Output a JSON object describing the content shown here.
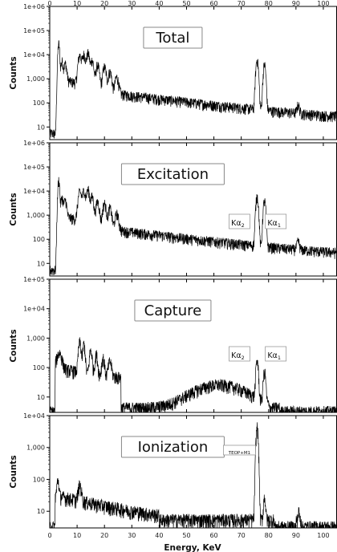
{
  "chart_data": {
    "type": "line",
    "xlabel": "Energy, KeV",
    "ylabel": "Counts",
    "xlim": [
      0,
      105
    ],
    "x_ticks": [
      0,
      10,
      20,
      30,
      40,
      50,
      60,
      70,
      80,
      90,
      100
    ],
    "x_tick_labels": [
      "0",
      "10",
      "20",
      "30",
      "40",
      "50",
      "60",
      "70",
      "80",
      "90",
      "100"
    ],
    "panels": [
      {
        "title": "Total",
        "y_scale": "log",
        "ylim": [
          3,
          1000000
        ],
        "y_ticks": [
          10,
          100,
          1000,
          10000,
          100000,
          1000000
        ],
        "y_tick_labels": [
          "10",
          "100",
          "1,000",
          "1e+04",
          "1e+05",
          "1e+06"
        ],
        "color": "#000000",
        "peaks_keV": [
          3.3,
          4.5,
          5.7,
          11.0,
          12.5,
          14.0,
          15.5,
          17.5,
          20.0,
          22.0,
          24.5,
          75.8,
          78.5,
          90.8
        ],
        "annotations": []
      },
      {
        "title": "Excitation",
        "y_scale": "log",
        "ylim": [
          3,
          1000000
        ],
        "y_ticks": [
          10,
          100,
          1000,
          10000,
          100000,
          1000000
        ],
        "y_tick_labels": [
          "10",
          "100",
          "1,000",
          "1e+04",
          "1e+05",
          "1e+06"
        ],
        "color": "#000000",
        "peaks_keV": [
          3.3,
          4.5,
          5.7,
          11.0,
          12.5,
          14.0,
          15.5,
          17.5,
          20.0,
          22.0,
          24.5,
          75.8,
          78.5,
          90.8
        ],
        "annotations": [
          {
            "main": "Kα",
            "sub": "2",
            "x": 75.8
          },
          {
            "main": "Kα",
            "sub": "1",
            "x": 78.5
          }
        ]
      },
      {
        "title": "Capture",
        "y_scale": "log",
        "ylim": [
          3,
          100000
        ],
        "y_ticks": [
          10,
          100,
          1000,
          10000,
          100000
        ],
        "y_tick_labels": [
          "10",
          "100",
          "1,000",
          "1e+04",
          "1e+05"
        ],
        "color": "#000000",
        "peaks_keV": [
          3.5,
          11.0,
          12.5,
          15.0,
          17.0,
          19.5,
          22.0,
          63.0,
          75.8,
          78.5
        ],
        "annotations": [
          {
            "main": "Kα",
            "sub": "2",
            "x": 75.8
          },
          {
            "main": "Kα",
            "sub": "1",
            "x": 78.5
          }
        ]
      },
      {
        "title": "Ionization",
        "y_scale": "log",
        "ylim": [
          3,
          10000
        ],
        "y_ticks": [
          10,
          100,
          1000,
          10000
        ],
        "y_tick_labels": [
          "10",
          "100",
          "1,000",
          "1e+04"
        ],
        "color": "#000000",
        "peaks_keV": [
          3.0,
          11.0,
          75.8,
          78.5,
          91.0
        ],
        "annotations": [
          {
            "main": "TEOP+M1",
            "sub": "",
            "x": 75.8
          }
        ]
      }
    ]
  }
}
